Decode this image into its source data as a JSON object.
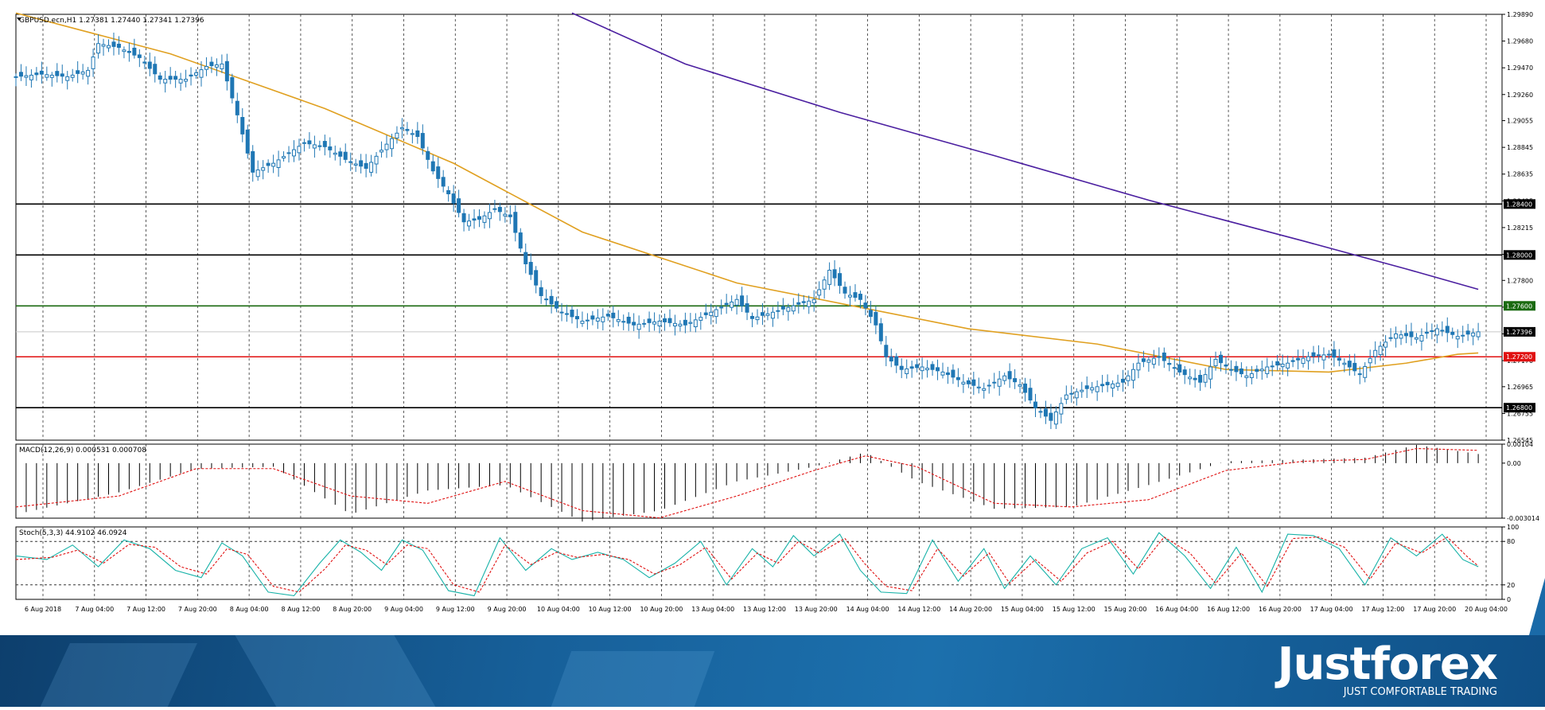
{
  "chart_data": [
    {
      "type": "candlestick",
      "title": "GBPUSD.ecn,H1  1.27381 1.27440 1.27341 1.27396",
      "symbol": "GBPUSD.ecn",
      "timeframe": "H1",
      "last_bar": {
        "open": 1.27381,
        "high": 1.2744,
        "low": 1.27341,
        "close": 1.27396
      },
      "ylim": [
        1.26545,
        1.2989
      ],
      "y_ticks": [
        "1.29890",
        "1.29680",
        "1.29470",
        "1.29260",
        "1.29055",
        "1.28845",
        "1.28635",
        "1.28425",
        "1.28215",
        "1.28005",
        "1.27800",
        "1.27590",
        "1.27380",
        "1.27170",
        "1.26965",
        "1.26755",
        "1.26545"
      ],
      "x_ticks": [
        "6 Aug 2018",
        "7 Aug 04:00",
        "7 Aug 12:00",
        "7 Aug 20:00",
        "8 Aug 04:00",
        "8 Aug 12:00",
        "8 Aug 20:00",
        "9 Aug 04:00",
        "9 Aug 12:00",
        "9 Aug 20:00",
        "10 Aug 04:00",
        "10 Aug 12:00",
        "10 Aug 20:00",
        "13 Aug 04:00",
        "13 Aug 12:00",
        "13 Aug 20:00",
        "14 Aug 04:00",
        "14 Aug 12:00",
        "14 Aug 20:00",
        "15 Aug 04:00",
        "15 Aug 12:00",
        "15 Aug 20:00",
        "16 Aug 04:00",
        "16 Aug 12:00",
        "16 Aug 20:00",
        "17 Aug 04:00",
        "17 Aug 12:00",
        "17 Aug 20:00",
        "20 Aug 04:00"
      ],
      "close_path": [
        [
          0,
          1.294
        ],
        [
          5,
          1.2942
        ],
        [
          10,
          1.294
        ],
        [
          14,
          1.2945
        ],
        [
          16,
          1.2966
        ],
        [
          20,
          1.2963
        ],
        [
          24,
          1.2955
        ],
        [
          28,
          1.2938
        ],
        [
          33,
          1.2938
        ],
        [
          37,
          1.2948
        ],
        [
          40,
          1.295
        ],
        [
          43,
          1.291
        ],
        [
          46,
          1.2865
        ],
        [
          50,
          1.2872
        ],
        [
          53,
          1.288
        ],
        [
          56,
          1.2888
        ],
        [
          60,
          1.2885
        ],
        [
          64,
          1.2875
        ],
        [
          68,
          1.2868
        ],
        [
          72,
          1.2887
        ],
        [
          75,
          1.29
        ],
        [
          78,
          1.2893
        ],
        [
          81,
          1.2866
        ],
        [
          84,
          1.2848
        ],
        [
          87,
          1.2826
        ],
        [
          90,
          1.2828
        ],
        [
          93,
          1.2836
        ],
        [
          96,
          1.283
        ],
        [
          99,
          1.2793
        ],
        [
          102,
          1.2768
        ],
        [
          106,
          1.2755
        ],
        [
          110,
          1.2748
        ],
        [
          115,
          1.2752
        ],
        [
          120,
          1.2745
        ],
        [
          125,
          1.2748
        ],
        [
          130,
          1.2745
        ],
        [
          135,
          1.2755
        ],
        [
          140,
          1.2765
        ],
        [
          143,
          1.275
        ],
        [
          147,
          1.2755
        ],
        [
          151,
          1.276
        ],
        [
          155,
          1.2765
        ],
        [
          158,
          1.2788
        ],
        [
          161,
          1.277
        ],
        [
          164,
          1.2765
        ],
        [
          167,
          1.2745
        ],
        [
          169,
          1.272
        ],
        [
          172,
          1.271
        ],
        [
          176,
          1.2712
        ],
        [
          180,
          1.2708
        ],
        [
          184,
          1.27
        ],
        [
          188,
          1.2695
        ],
        [
          192,
          1.2705
        ],
        [
          195,
          1.2698
        ],
        [
          198,
          1.268
        ],
        [
          201,
          1.267
        ],
        [
          204,
          1.269
        ],
        [
          208,
          1.2695
        ],
        [
          212,
          1.2698
        ],
        [
          215,
          1.27
        ],
        [
          218,
          1.2715
        ],
        [
          222,
          1.272
        ],
        [
          226,
          1.2708
        ],
        [
          230,
          1.27
        ],
        [
          233,
          1.2718
        ],
        [
          236,
          1.271
        ],
        [
          239,
          1.2705
        ],
        [
          243,
          1.2712
        ],
        [
          247,
          1.2715
        ],
        [
          251,
          1.272
        ],
        [
          255,
          1.2722
        ],
        [
          258,
          1.2715
        ],
        [
          261,
          1.2706
        ],
        [
          264,
          1.2725
        ],
        [
          268,
          1.2738
        ],
        [
          272,
          1.2735
        ],
        [
          276,
          1.2742
        ],
        [
          280,
          1.2736
        ],
        [
          284,
          1.27396
        ]
      ],
      "overlays": [
        {
          "name": "MA (orange)",
          "color": "#e0a020",
          "points": [
            [
              0,
              1.299
            ],
            [
              30,
              1.2958
            ],
            [
              60,
              1.2915
            ],
            [
              85,
              1.2872
            ],
            [
              110,
              1.2818
            ],
            [
              140,
              1.2778
            ],
            [
              165,
              1.2758
            ],
            [
              185,
              1.2742
            ],
            [
              210,
              1.273
            ],
            [
              235,
              1.271
            ],
            [
              255,
              1.2708
            ],
            [
              270,
              1.2715
            ],
            [
              280,
              1.2722
            ],
            [
              284,
              1.2723
            ]
          ]
        },
        {
          "name": "MA (purple)",
          "color": "#4b1fa0",
          "points": [
            [
              108,
              1.299
            ],
            [
              130,
              1.295
            ],
            [
              160,
              1.2912
            ],
            [
              190,
              1.2878
            ],
            [
              220,
              1.2843
            ],
            [
              250,
              1.2811
            ],
            [
              270,
              1.2789
            ],
            [
              284,
              1.2773
            ]
          ]
        }
      ],
      "horizontal_levels": [
        {
          "price": 1.284,
          "label": "1.28400",
          "color": "#000000",
          "label_bg": "#000000"
        },
        {
          "price": 1.28,
          "label": "1.28000",
          "color": "#000000",
          "label_bg": "#000000"
        },
        {
          "price": 1.276,
          "label": "1.27600",
          "color": "#1a6a10",
          "label_bg": "#1a6a10"
        },
        {
          "price": 1.27396,
          "label": "1.27396",
          "color": "#c8c8c8",
          "label_bg": "#000000"
        },
        {
          "price": 1.272,
          "label": "1.27200",
          "color": "#e01010",
          "label_bg": "#e01010"
        },
        {
          "price": 1.268,
          "label": "1.26800",
          "color": "#000000",
          "label_bg": "#000000"
        }
      ],
      "colors": {
        "candle": "#1f77b4",
        "grid": "#000000"
      },
      "grid": true
    },
    {
      "type": "bar",
      "title": "MACD(12,26,9) 0.000531 0.000708",
      "ylim": [
        -0.003014,
        0.00104
      ],
      "y_ticks": [
        "0.00104",
        "0.00",
        "-0.003014"
      ],
      "histogram_path": [
        [
          0,
          -0.0028
        ],
        [
          20,
          -0.0016
        ],
        [
          35,
          -0.0003
        ],
        [
          50,
          -0.0002
        ],
        [
          65,
          -0.0028
        ],
        [
          80,
          -0.0015
        ],
        [
          95,
          -0.0012
        ],
        [
          110,
          -0.0032
        ],
        [
          125,
          -0.0026
        ],
        [
          140,
          -0.001
        ],
        [
          155,
          -0.0002
        ],
        [
          165,
          0.0006
        ],
        [
          175,
          -0.001
        ],
        [
          190,
          -0.0025
        ],
        [
          205,
          -0.0024
        ],
        [
          220,
          -0.0012
        ],
        [
          235,
          0.0001
        ],
        [
          250,
          0.0002
        ],
        [
          262,
          0.0003
        ],
        [
          272,
          0.001
        ],
        [
          284,
          0.0005
        ]
      ],
      "signal_path": [
        [
          0,
          -0.0024
        ],
        [
          20,
          -0.0018
        ],
        [
          35,
          -0.0003
        ],
        [
          50,
          -0.0003
        ],
        [
          65,
          -0.0018
        ],
        [
          80,
          -0.0022
        ],
        [
          95,
          -0.001
        ],
        [
          110,
          -0.0026
        ],
        [
          125,
          -0.003
        ],
        [
          140,
          -0.0018
        ],
        [
          155,
          -0.0004
        ],
        [
          165,
          0.0004
        ],
        [
          175,
          -0.0002
        ],
        [
          190,
          -0.0022
        ],
        [
          205,
          -0.0024
        ],
        [
          220,
          -0.002
        ],
        [
          235,
          -0.0004
        ],
        [
          250,
          0.0001
        ],
        [
          262,
          0.0002
        ],
        [
          272,
          0.0008
        ],
        [
          284,
          0.0007
        ]
      ],
      "colors": {
        "histogram": "#000000",
        "signal": "#e01010"
      }
    },
    {
      "type": "line",
      "title": "Stoch(5,3,3) 44.9102 46.0924",
      "ylim": [
        0,
        100
      ],
      "y_ticks": [
        "100",
        "80",
        "20",
        "0"
      ],
      "levels": [
        80,
        20
      ],
      "main_path": [
        [
          0,
          60
        ],
        [
          6,
          55
        ],
        [
          11,
          75
        ],
        [
          16,
          45
        ],
        [
          21,
          82
        ],
        [
          26,
          70
        ],
        [
          31,
          40
        ],
        [
          36,
          30
        ],
        [
          40,
          78
        ],
        [
          44,
          60
        ],
        [
          49,
          10
        ],
        [
          54,
          5
        ],
        [
          59,
          50
        ],
        [
          63,
          82
        ],
        [
          67,
          65
        ],
        [
          71,
          40
        ],
        [
          75,
          82
        ],
        [
          79,
          68
        ],
        [
          84,
          12
        ],
        [
          89,
          5
        ],
        [
          94,
          85
        ],
        [
          99,
          40
        ],
        [
          104,
          70
        ],
        [
          108,
          55
        ],
        [
          113,
          65
        ],
        [
          118,
          55
        ],
        [
          123,
          30
        ],
        [
          128,
          50
        ],
        [
          133,
          80
        ],
        [
          138,
          20
        ],
        [
          143,
          70
        ],
        [
          147,
          45
        ],
        [
          151,
          88
        ],
        [
          155,
          60
        ],
        [
          160,
          90
        ],
        [
          164,
          40
        ],
        [
          168,
          10
        ],
        [
          173,
          8
        ],
        [
          178,
          82
        ],
        [
          183,
          25
        ],
        [
          188,
          70
        ],
        [
          192,
          15
        ],
        [
          197,
          60
        ],
        [
          202,
          20
        ],
        [
          207,
          70
        ],
        [
          212,
          85
        ],
        [
          217,
          35
        ],
        [
          222,
          92
        ],
        [
          227,
          60
        ],
        [
          232,
          15
        ],
        [
          237,
          72
        ],
        [
          242,
          10
        ],
        [
          247,
          90
        ],
        [
          252,
          88
        ],
        [
          257,
          70
        ],
        [
          262,
          20
        ],
        [
          267,
          85
        ],
        [
          272,
          60
        ],
        [
          277,
          90
        ],
        [
          281,
          55
        ],
        [
          284,
          45
        ]
      ],
      "signal_path": [
        [
          0,
          55
        ],
        [
          7,
          58
        ],
        [
          12,
          68
        ],
        [
          17,
          50
        ],
        [
          22,
          76
        ],
        [
          27,
          72
        ],
        [
          32,
          45
        ],
        [
          37,
          35
        ],
        [
          41,
          70
        ],
        [
          45,
          62
        ],
        [
          50,
          18
        ],
        [
          55,
          10
        ],
        [
          60,
          42
        ],
        [
          64,
          75
        ],
        [
          68,
          68
        ],
        [
          72,
          48
        ],
        [
          76,
          75
        ],
        [
          80,
          70
        ],
        [
          85,
          20
        ],
        [
          90,
          10
        ],
        [
          95,
          75
        ],
        [
          100,
          48
        ],
        [
          105,
          65
        ],
        [
          109,
          58
        ],
        [
          114,
          62
        ],
        [
          119,
          55
        ],
        [
          124,
          35
        ],
        [
          129,
          48
        ],
        [
          134,
          72
        ],
        [
          139,
          28
        ],
        [
          144,
          64
        ],
        [
          148,
          50
        ],
        [
          152,
          80
        ],
        [
          156,
          64
        ],
        [
          161,
          84
        ],
        [
          165,
          48
        ],
        [
          169,
          18
        ],
        [
          174,
          12
        ],
        [
          179,
          70
        ],
        [
          184,
          32
        ],
        [
          189,
          64
        ],
        [
          193,
          22
        ],
        [
          198,
          55
        ],
        [
          203,
          25
        ],
        [
          208,
          64
        ],
        [
          213,
          80
        ],
        [
          218,
          42
        ],
        [
          223,
          86
        ],
        [
          228,
          64
        ],
        [
          233,
          22
        ],
        [
          238,
          64
        ],
        [
          243,
          18
        ],
        [
          248,
          84
        ],
        [
          253,
          86
        ],
        [
          258,
          72
        ],
        [
          263,
          28
        ],
        [
          268,
          78
        ],
        [
          273,
          64
        ],
        [
          278,
          86
        ],
        [
          282,
          58
        ],
        [
          284,
          46.09
        ]
      ],
      "colors": {
        "main": "#17b2a8",
        "signal": "#e01010"
      }
    }
  ],
  "branding": {
    "logo_text": "Justforex",
    "tagline": "JUST COMFORTABLE TRADING"
  }
}
